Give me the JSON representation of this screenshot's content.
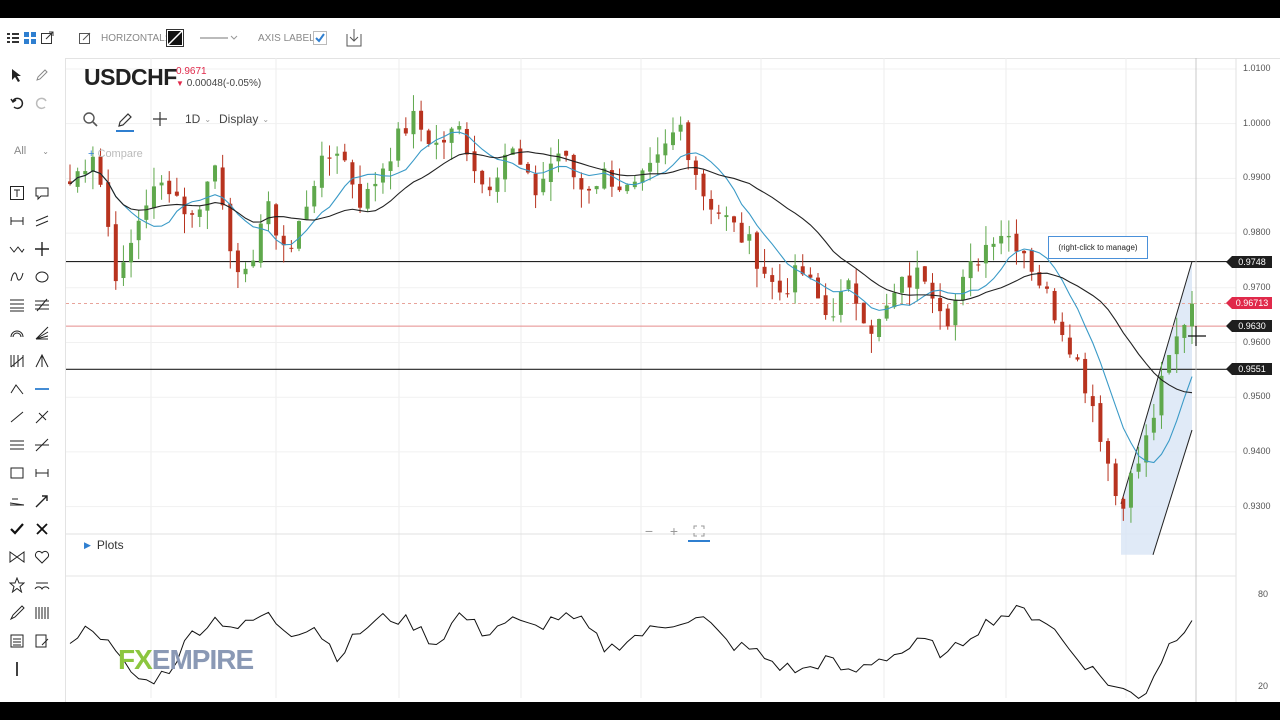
{
  "toolbar": {
    "horizontal_label": "HORIZONTAL:",
    "axis_label": "AXIS LABEL:"
  },
  "sidebar": {
    "filter_label": "All"
  },
  "header": {
    "symbol": "USDCHF",
    "price": "0.9671",
    "change": "0.00048(-0.05%)"
  },
  "chart_buttons": {
    "interval": "1D",
    "display": "Display",
    "compare": "Compare"
  },
  "plots_label": "Plots",
  "manage_tooltip": "(right-click to manage)",
  "logo": {
    "fx": "FX",
    "empire": "EMPIRE"
  },
  "colors": {
    "up": "#5fa84c",
    "down": "#b8331f",
    "ma_fast": "#3a9ac7",
    "ma_slow": "#222222",
    "accent": "#2f7fd0",
    "tag_dark": "#1e1e1e",
    "tag_red": "#e0294a"
  },
  "chart_data": {
    "type": "candlestick",
    "y_axis": {
      "range": [
        0.925,
        1.012
      ],
      "ticks": [
        "1.0100",
        "1.0000",
        "0.9900",
        "0.9800",
        "0.9700",
        "0.9600",
        "0.9500",
        "0.9400",
        "0.9300"
      ]
    },
    "price_tags": [
      {
        "label": "0.9748",
        "value": 0.9748,
        "style": "dark"
      },
      {
        "label": "0.96713",
        "value": 0.96713,
        "style": "red"
      },
      {
        "label": "0.9630",
        "value": 0.963,
        "style": "dark"
      },
      {
        "label": "0.9551",
        "value": 0.9551,
        "style": "dark"
      }
    ],
    "horizontal_lines": [
      0.9748,
      0.963,
      0.9551
    ],
    "current_price_line": 0.96713,
    "channel": {
      "lower": [
        [
          0.9275,
          0.944
        ],
        [
          0.9212,
          0.9447
        ]
      ],
      "upper": [
        [
          0.9275,
          0.953
        ],
        [
          0.9212,
          0.9747
        ]
      ]
    },
    "path": [
      0.989,
      0.9955,
      0.97,
      0.9855,
      0.9895,
      0.9825,
      0.993,
      0.968,
      0.985,
      0.976,
      0.99,
      0.996,
      0.985,
      0.994,
      1.001,
      0.996,
      0.999,
      0.988,
      0.996,
      0.987,
      0.995,
      0.988,
      0.991,
      0.987,
      0.992,
      1.0,
      0.987,
      0.982,
      0.977,
      0.969,
      0.973,
      0.965,
      0.97,
      0.962,
      0.97,
      0.973,
      0.965,
      0.974,
      0.981,
      0.978,
      0.969,
      0.96,
      0.948,
      0.93,
      0.94,
      0.956,
      0.968
    ],
    "oscillator": {
      "ticks": [
        "80",
        "20"
      ],
      "range": [
        10,
        90
      ],
      "values": [
        52,
        60,
        38,
        22,
        30,
        55,
        65,
        58,
        68,
        56,
        60,
        40,
        58,
        66,
        62,
        48,
        68,
        55,
        64,
        58,
        66,
        62,
        44,
        52,
        58,
        64,
        64,
        48,
        44,
        34,
        30,
        38,
        28,
        38,
        42,
        50,
        40,
        56,
        66,
        70,
        64,
        44,
        30,
        18,
        14,
        46,
        66
      ]
    }
  }
}
